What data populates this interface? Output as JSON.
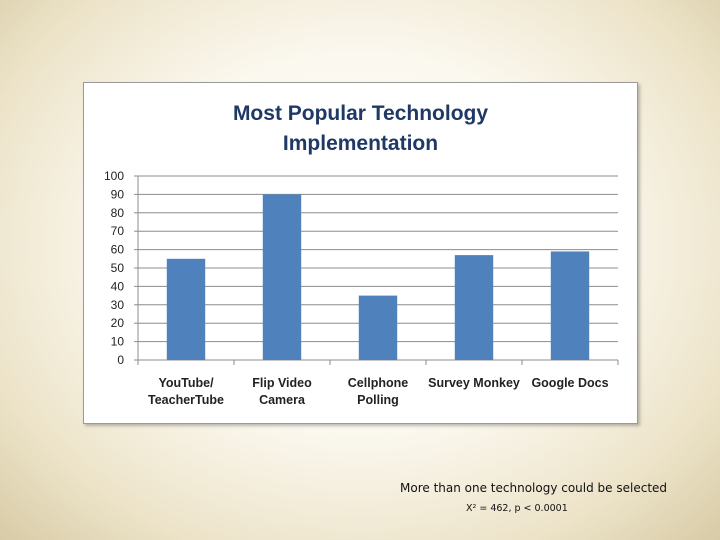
{
  "chart_data": {
    "type": "bar",
    "title": "Most Popular Technology\nImplementation",
    "categories": [
      "YouTube/\nTeacherTube",
      "Flip Video\nCamera",
      "Cellphone\nPolling",
      "Survey Monkey",
      "Google Docs"
    ],
    "values": [
      55,
      90,
      35,
      57,
      59
    ],
    "ylim": [
      0,
      100
    ],
    "yticks": [
      0,
      10,
      20,
      30,
      40,
      50,
      60,
      70,
      80,
      90,
      100
    ],
    "xlabel": "",
    "ylabel": "",
    "grid": true,
    "bar_color": "#4f81bd"
  },
  "notes": {
    "selection": "More than one technology could be selected",
    "statistic": "X² = 462, p < 0.0001"
  }
}
